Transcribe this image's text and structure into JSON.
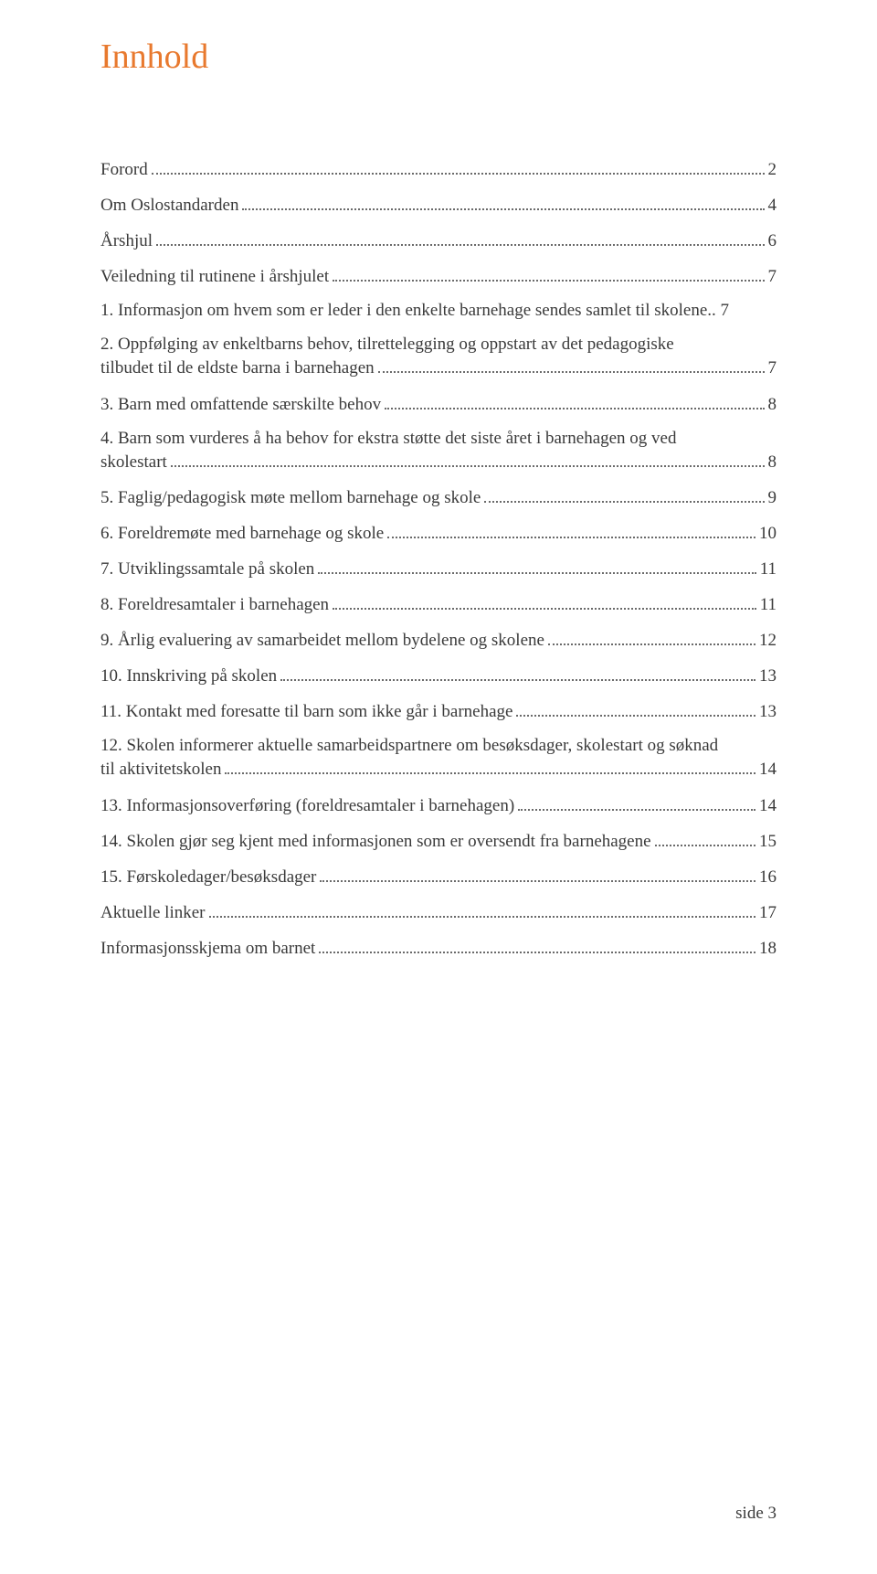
{
  "title": "Innhold",
  "colors": {
    "title": "#e8792e",
    "text": "#3a3a3a",
    "background": "#ffffff",
    "leader": "#6a6a6a"
  },
  "typography": {
    "title_fontsize": 38,
    "body_fontsize": 19,
    "font_family": "Times New Roman"
  },
  "toc_items": [
    {
      "label": "Forord",
      "page": "2"
    },
    {
      "label": "Om Oslostandarden",
      "page": "4"
    },
    {
      "label": "Årshjul",
      "page": "6"
    },
    {
      "label": "Veiledning til rutinene i årshjulet",
      "page": "7"
    },
    {
      "label": "1. Informasjon om hvem som er leder i den enkelte barnehage sendes samlet til skolene.. 7",
      "page": "",
      "noleader": true
    },
    {
      "label_line1": "2. Oppfølging av enkeltbarns behov, tilrettelegging og oppstart av det pedagogiske",
      "label_line2": "tilbudet til de eldste barna i barnehagen",
      "page": "7",
      "multiline": true
    },
    {
      "label": "3. Barn med omfattende særskilte behov",
      "page": "8"
    },
    {
      "label_line1": "4. Barn som vurderes å ha behov for ekstra støtte det siste året i barnehagen og ved",
      "label_line2": "skolestart",
      "page": "8",
      "multiline": true
    },
    {
      "label": "5. Faglig/pedagogisk møte mellom barnehage og skole",
      "page": "9"
    },
    {
      "label": "6. Foreldremøte med barnehage og skole",
      "page": "10"
    },
    {
      "label": "7. Utviklingssamtale på skolen",
      "page": "11"
    },
    {
      "label": "8. Foreldresamtaler i barnehagen",
      "page": "11"
    },
    {
      "label": "9. Årlig evaluering av samarbeidet mellom bydelene og skolene",
      "page": "12"
    },
    {
      "label": "10. Innskriving på skolen",
      "page": "13"
    },
    {
      "label": "11. Kontakt med foresatte til barn som ikke går i barnehage",
      "page": "13"
    },
    {
      "label_line1": "12. Skolen informerer aktuelle samarbeidspartnere om besøksdager, skolestart og søknad",
      "label_line2": "til aktivitetskolen",
      "page": "14",
      "multiline": true
    },
    {
      "label": "13. Informasjonsoverføring (foreldresamtaler i barnehagen)",
      "page": "14"
    },
    {
      "label": "14. Skolen gjør seg kjent med informasjonen som er oversendt fra barnehagene",
      "page": "15"
    },
    {
      "label": "15. Førskoledager/besøksdager",
      "page": "16"
    },
    {
      "label": "Aktuelle linker",
      "page": "17"
    },
    {
      "label": "Informasjonsskjema om barnet",
      "page": "18"
    }
  ],
  "footer": "side 3"
}
